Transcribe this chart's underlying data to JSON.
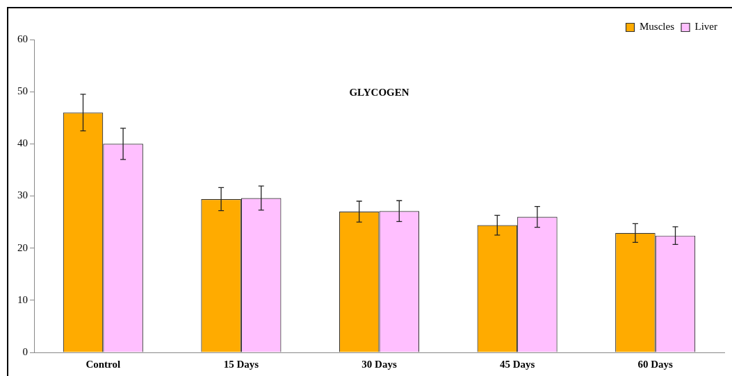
{
  "chart_data": {
    "type": "bar",
    "title": "GLYCOGEN",
    "categories": [
      "Control",
      "15 Days",
      "30 Days",
      "45 Days",
      "60 Days"
    ],
    "series": [
      {
        "name": "Muscles",
        "color": "#ffab00",
        "values": [
          46.0,
          29.4,
          27.0,
          24.4,
          22.9
        ],
        "errors": [
          3.5,
          2.2,
          2.0,
          1.9,
          1.8
        ]
      },
      {
        "name": "Liver",
        "color": "#ffbfff",
        "values": [
          40.0,
          29.6,
          27.1,
          26.0,
          22.4
        ],
        "errors": [
          3.0,
          2.3,
          2.0,
          2.0,
          1.7
        ]
      }
    ],
    "ylim": [
      0,
      60
    ],
    "yticks": [
      0,
      10,
      20,
      30,
      40,
      50,
      60
    ],
    "grid": false,
    "legend": "top right"
  }
}
